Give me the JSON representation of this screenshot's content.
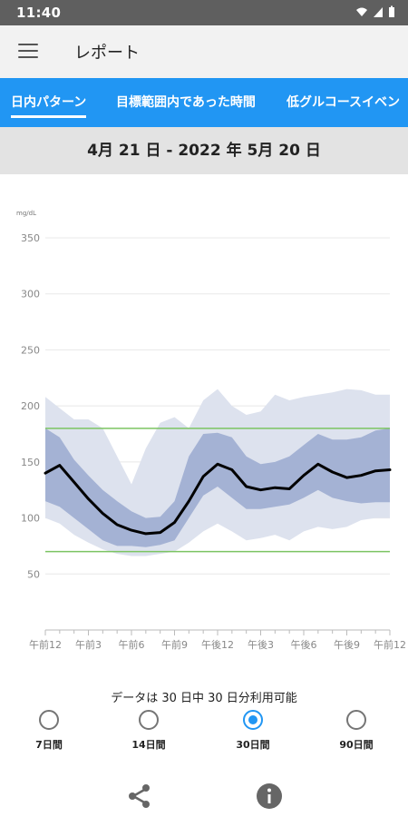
{
  "status_bar": {
    "time": "11:40"
  },
  "app_bar": {
    "title": "レポート"
  },
  "tabs": [
    {
      "label": "日内パターン",
      "active": true
    },
    {
      "label": "目標範囲内であった時間",
      "active": false
    },
    {
      "label": "低グルコースイベン",
      "active": false
    }
  ],
  "date_range": "4月 21 日 - 2022 年 5月 20 日",
  "chart_data": {
    "type": "area",
    "unit_label": "mg/dL",
    "y_ticks": [
      50,
      100,
      150,
      200,
      250,
      300,
      350
    ],
    "ylim": [
      0,
      370
    ],
    "x_tick_labels": [
      "午前12",
      "午前3",
      "午前6",
      "午前9",
      "午後12",
      "午後3",
      "午後6",
      "午後9",
      "午前12"
    ],
    "target_range": [
      70,
      180
    ],
    "hours": [
      0,
      1,
      2,
      3,
      4,
      5,
      6,
      7,
      8,
      9,
      10,
      11,
      12,
      13,
      14,
      15,
      16,
      17,
      18,
      19,
      20,
      21,
      22,
      23,
      24
    ],
    "median": [
      140,
      147,
      132,
      117,
      104,
      94,
      89,
      86,
      87,
      96,
      115,
      137,
      148,
      143,
      128,
      125,
      127,
      126,
      138,
      148,
      141,
      136,
      138,
      142,
      143
    ],
    "p25_p75": {
      "lower": [
        115,
        110,
        100,
        90,
        80,
        75,
        75,
        74,
        76,
        80,
        100,
        120,
        128,
        118,
        108,
        108,
        110,
        112,
        118,
        125,
        118,
        115,
        113,
        114,
        114
      ],
      "upper": [
        180,
        172,
        152,
        138,
        125,
        115,
        106,
        100,
        101,
        115,
        155,
        175,
        176,
        172,
        155,
        148,
        150,
        155,
        165,
        175,
        170,
        170,
        172,
        178,
        180
      ]
    },
    "p10_p90": {
      "lower": [
        100,
        95,
        85,
        78,
        72,
        68,
        66,
        66,
        68,
        70,
        78,
        88,
        95,
        88,
        80,
        82,
        85,
        80,
        88,
        92,
        90,
        92,
        98,
        100,
        100
      ],
      "upper": [
        208,
        198,
        188,
        188,
        180,
        155,
        130,
        162,
        185,
        190,
        180,
        205,
        215,
        200,
        192,
        195,
        210,
        205,
        208,
        210,
        212,
        215,
        214,
        210,
        210
      ]
    },
    "colors": {
      "median": "#000000",
      "iqr": "#a4b2d4",
      "outer": "#dde2ee",
      "target": "#7cc462",
      "grid": "#e8e8e8"
    }
  },
  "availability_text": "データは 30 日中 30 日分利用可能",
  "range_options": [
    {
      "label": "7日間",
      "selected": false
    },
    {
      "label": "14日間",
      "selected": false
    },
    {
      "label": "30日間",
      "selected": true
    },
    {
      "label": "90日間",
      "selected": false
    }
  ],
  "bottom_actions": {
    "share_icon": "share-icon",
    "info_icon": "info-icon"
  },
  "accent_color": "#2196f3"
}
